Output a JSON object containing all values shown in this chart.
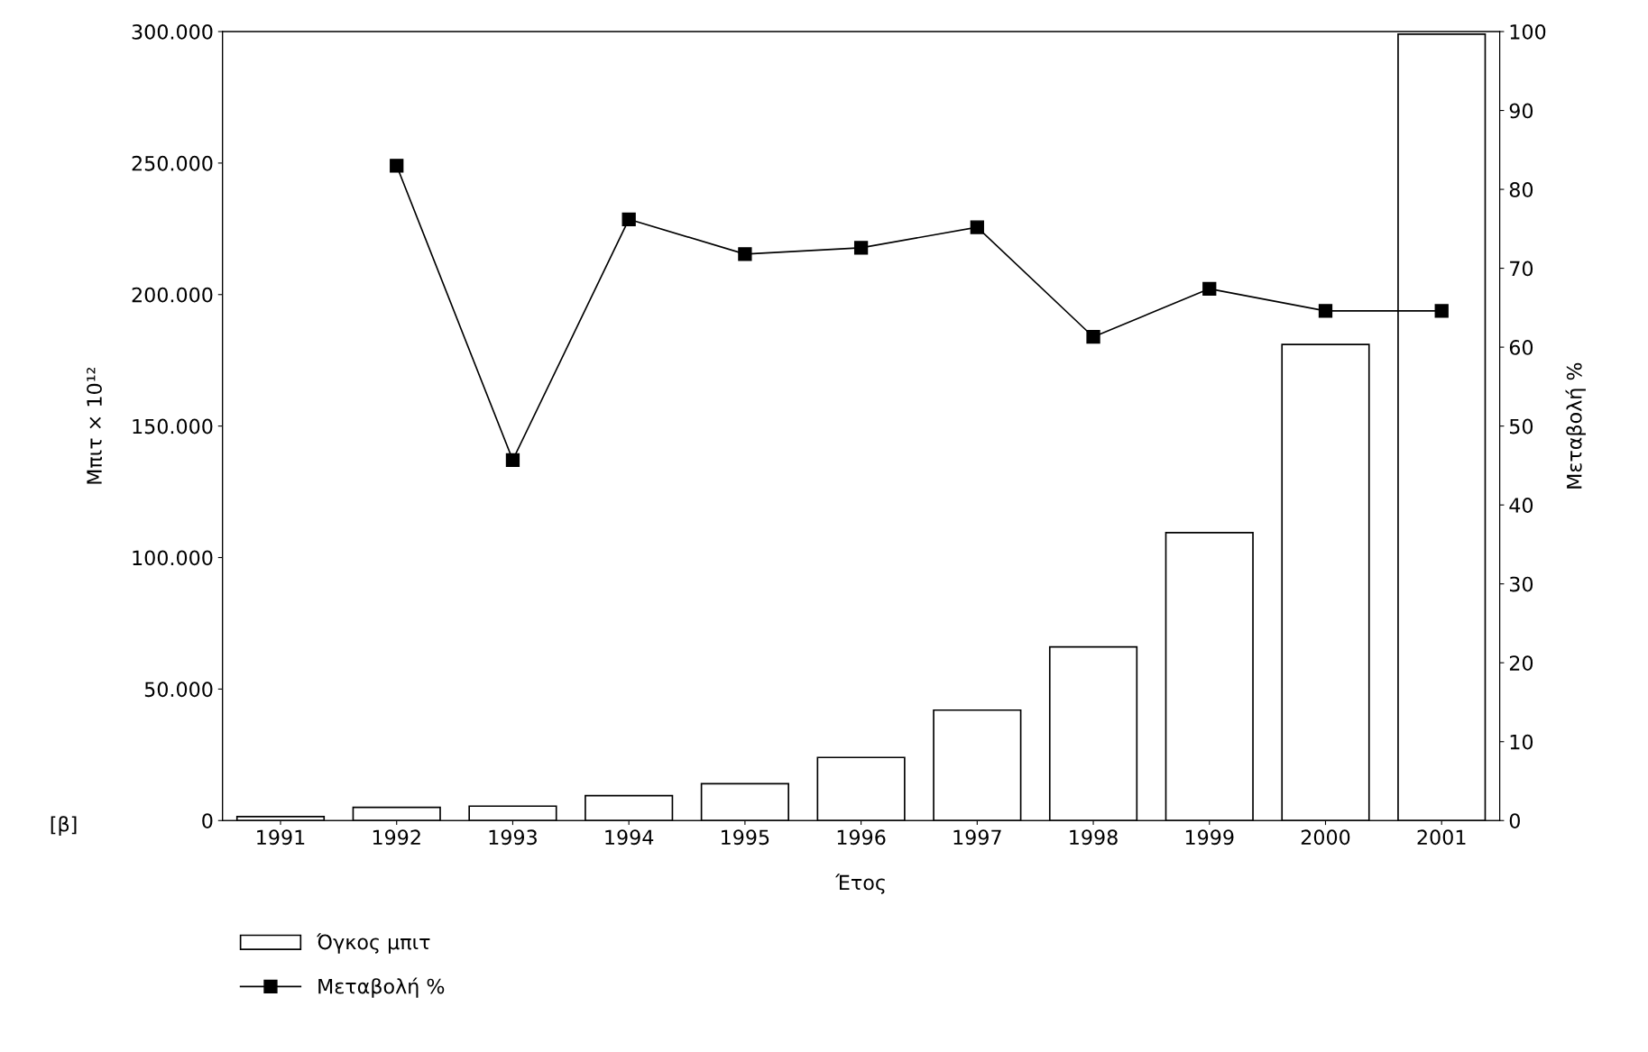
{
  "chart_data": {
    "type": "bar",
    "xlabel": "Έτος",
    "ylabel": "Μπιτ × 10¹²",
    "y2label": "Μεταβολή %",
    "categories": [
      "1991",
      "1992",
      "1993",
      "1994",
      "1995",
      "1996",
      "1997",
      "1998",
      "1999",
      "2000",
      "2001"
    ],
    "series": [
      {
        "name": "Όγκος μπιτ",
        "color": "#ffffff",
        "values": [
          1500,
          5000,
          5500,
          9500,
          14000,
          24000,
          42000,
          66000,
          109500,
          181000,
          299000
        ]
      },
      {
        "name": "Μεταβολή %",
        "type": "line",
        "axis": "y2",
        "color": "#000000",
        "marker": "square",
        "line_style": "solid",
        "values": [
          null,
          83,
          45.7,
          76.2,
          71.8,
          72.6,
          75.2,
          61.3,
          67.4,
          64.6,
          64.6
        ]
      }
    ],
    "ylim": [
      0,
      300000
    ],
    "yticks": [
      {
        "value": 0,
        "label": "0"
      },
      {
        "value": 50000,
        "label": "50.000"
      },
      {
        "value": 100000,
        "label": "100.000"
      },
      {
        "value": 150000,
        "label": "150.000"
      },
      {
        "value": 200000,
        "label": "200.000"
      },
      {
        "value": 250000,
        "label": "250.000"
      },
      {
        "value": 300000,
        "label": "300.000"
      }
    ],
    "y2lim": [
      0,
      100
    ],
    "y2ticks": [
      0,
      10,
      20,
      30,
      40,
      50,
      60,
      70,
      80,
      90,
      100
    ],
    "annotations": [
      "[β]"
    ],
    "grid": false,
    "legend": "bottom left"
  }
}
